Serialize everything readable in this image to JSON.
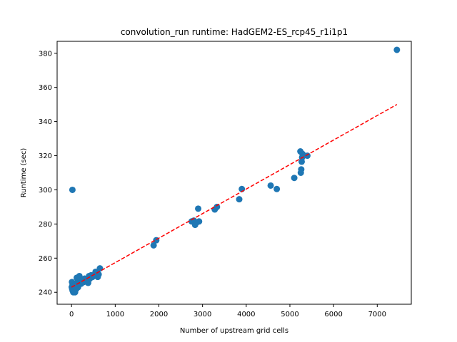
{
  "chart_data": {
    "type": "scatter",
    "title": "convolution_run runtime: HadGEM2-ES_rcp45_r1i1p1",
    "xlabel": "Number of upstream grid cells",
    "ylabel": "Runtime (sec)",
    "xlim": [
      -330,
      7780
    ],
    "ylim": [
      233,
      387
    ],
    "xticks": [
      0,
      1000,
      2000,
      3000,
      4000,
      5000,
      6000,
      7000
    ],
    "yticks": [
      240,
      260,
      280,
      300,
      320,
      340,
      360,
      380
    ],
    "grid": false,
    "legend": "none",
    "marker_color": "#1f77b4",
    "fit_line_color": "#ff0000",
    "series": [
      {
        "kind": "points",
        "x": [
          5,
          10,
          15,
          20,
          25,
          30,
          40,
          50,
          60,
          70,
          80,
          90,
          100,
          110,
          120,
          130,
          140,
          150,
          160,
          170,
          180,
          200,
          220,
          250,
          280,
          300,
          350,
          380,
          400,
          420,
          450,
          480,
          500,
          550,
          600,
          620,
          650,
          1880,
          1940,
          2750,
          2800,
          2830,
          2870,
          2900,
          2920,
          3280,
          3330,
          3840,
          3900,
          4560,
          4700,
          5100,
          5240,
          5250,
          5260,
          5270,
          5280,
          5290,
          5400,
          7450,
          20
        ],
        "y": [
          243,
          246,
          242,
          244,
          241,
          243,
          240,
          242,
          241,
          244,
          240,
          243,
          245,
          242,
          248.5,
          244,
          246,
          243,
          247,
          245,
          249.5,
          248,
          245,
          247,
          246,
          248,
          247,
          245.5,
          249.5,
          248,
          250,
          249,
          249.5,
          252,
          249,
          250.5,
          254,
          267.5,
          270.5,
          281.5,
          282,
          279.5,
          281,
          289,
          281.5,
          288.5,
          290,
          294.5,
          300.5,
          302.5,
          300.5,
          307,
          322.5,
          310,
          312,
          316.5,
          319,
          321,
          320,
          382,
          300
        ]
      },
      {
        "kind": "fit-line",
        "x": [
          0,
          7450
        ],
        "y": [
          243,
          350
        ]
      }
    ]
  }
}
